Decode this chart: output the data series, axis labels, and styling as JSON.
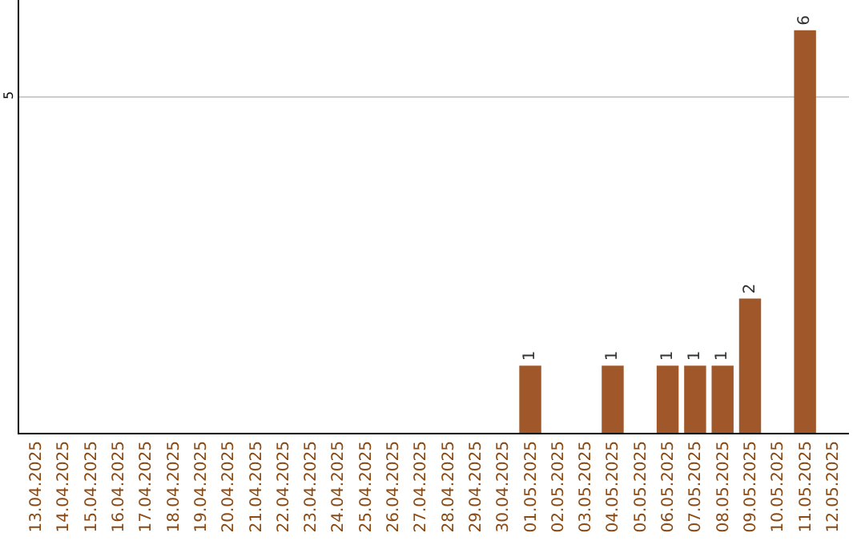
{
  "chart_data": {
    "type": "bar",
    "categories": [
      "13.04.2025",
      "14.04.2025",
      "15.04.2025",
      "16.04.2025",
      "17.04.2025",
      "18.04.2025",
      "19.04.2025",
      "20.04.2025",
      "21.04.2025",
      "22.04.2025",
      "23.04.2025",
      "24.04.2025",
      "25.04.2025",
      "26.04.2025",
      "27.04.2025",
      "28.04.2025",
      "29.04.2025",
      "30.04.2025",
      "01.05.2025",
      "02.05.2025",
      "03.05.2025",
      "04.05.2025",
      "05.05.2025",
      "06.05.2025",
      "07.05.2025",
      "08.05.2025",
      "09.05.2025",
      "10.05.2025",
      "11.05.2025",
      "12.05.2025"
    ],
    "values": [
      null,
      null,
      null,
      null,
      null,
      null,
      null,
      null,
      null,
      null,
      null,
      null,
      null,
      null,
      null,
      null,
      null,
      null,
      1,
      null,
      null,
      1,
      null,
      1,
      1,
      1,
      2,
      null,
      6,
      null
    ],
    "color": "#a0582a",
    "ylim": [
      0,
      6.45
    ],
    "yticks": [
      5
    ],
    "grid": "y",
    "data_labels": true,
    "legend": false
  }
}
